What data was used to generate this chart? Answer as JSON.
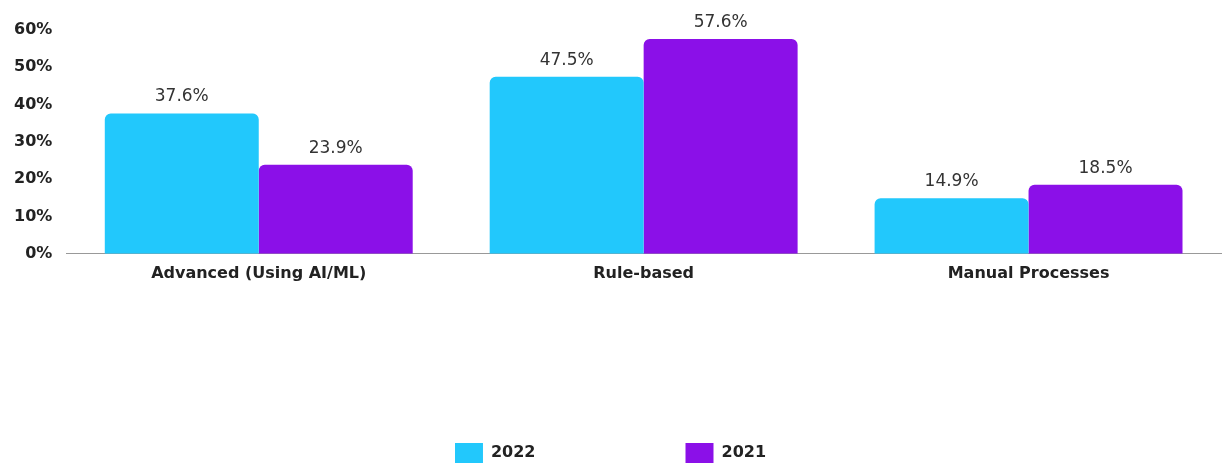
{
  "chart_data": {
    "type": "bar",
    "categories": [
      "Advanced (Using AI/ML)",
      "Rule-based",
      "Manual Processes"
    ],
    "series": [
      {
        "name": "2022",
        "color": "#22c8fc",
        "values": [
          37.6,
          47.5,
          14.9
        ],
        "value_labels": [
          "37.6%",
          "47.5%",
          "14.9%"
        ]
      },
      {
        "name": "2021",
        "color": "#8b10e8",
        "values": [
          23.9,
          57.6,
          18.5
        ],
        "value_labels": [
          "23.9%",
          "57.6%",
          "18.5%"
        ]
      }
    ],
    "ylim": [
      0,
      60
    ],
    "yticks": [
      {
        "value": 0,
        "label": "0%"
      },
      {
        "value": 10,
        "label": "10%"
      },
      {
        "value": 20,
        "label": "20%"
      },
      {
        "value": 30,
        "label": "30%"
      },
      {
        "value": 40,
        "label": "40%"
      },
      {
        "value": 50,
        "label": "50%"
      },
      {
        "value": 60,
        "label": "60%"
      }
    ],
    "grid": false,
    "legend": "bottom"
  }
}
